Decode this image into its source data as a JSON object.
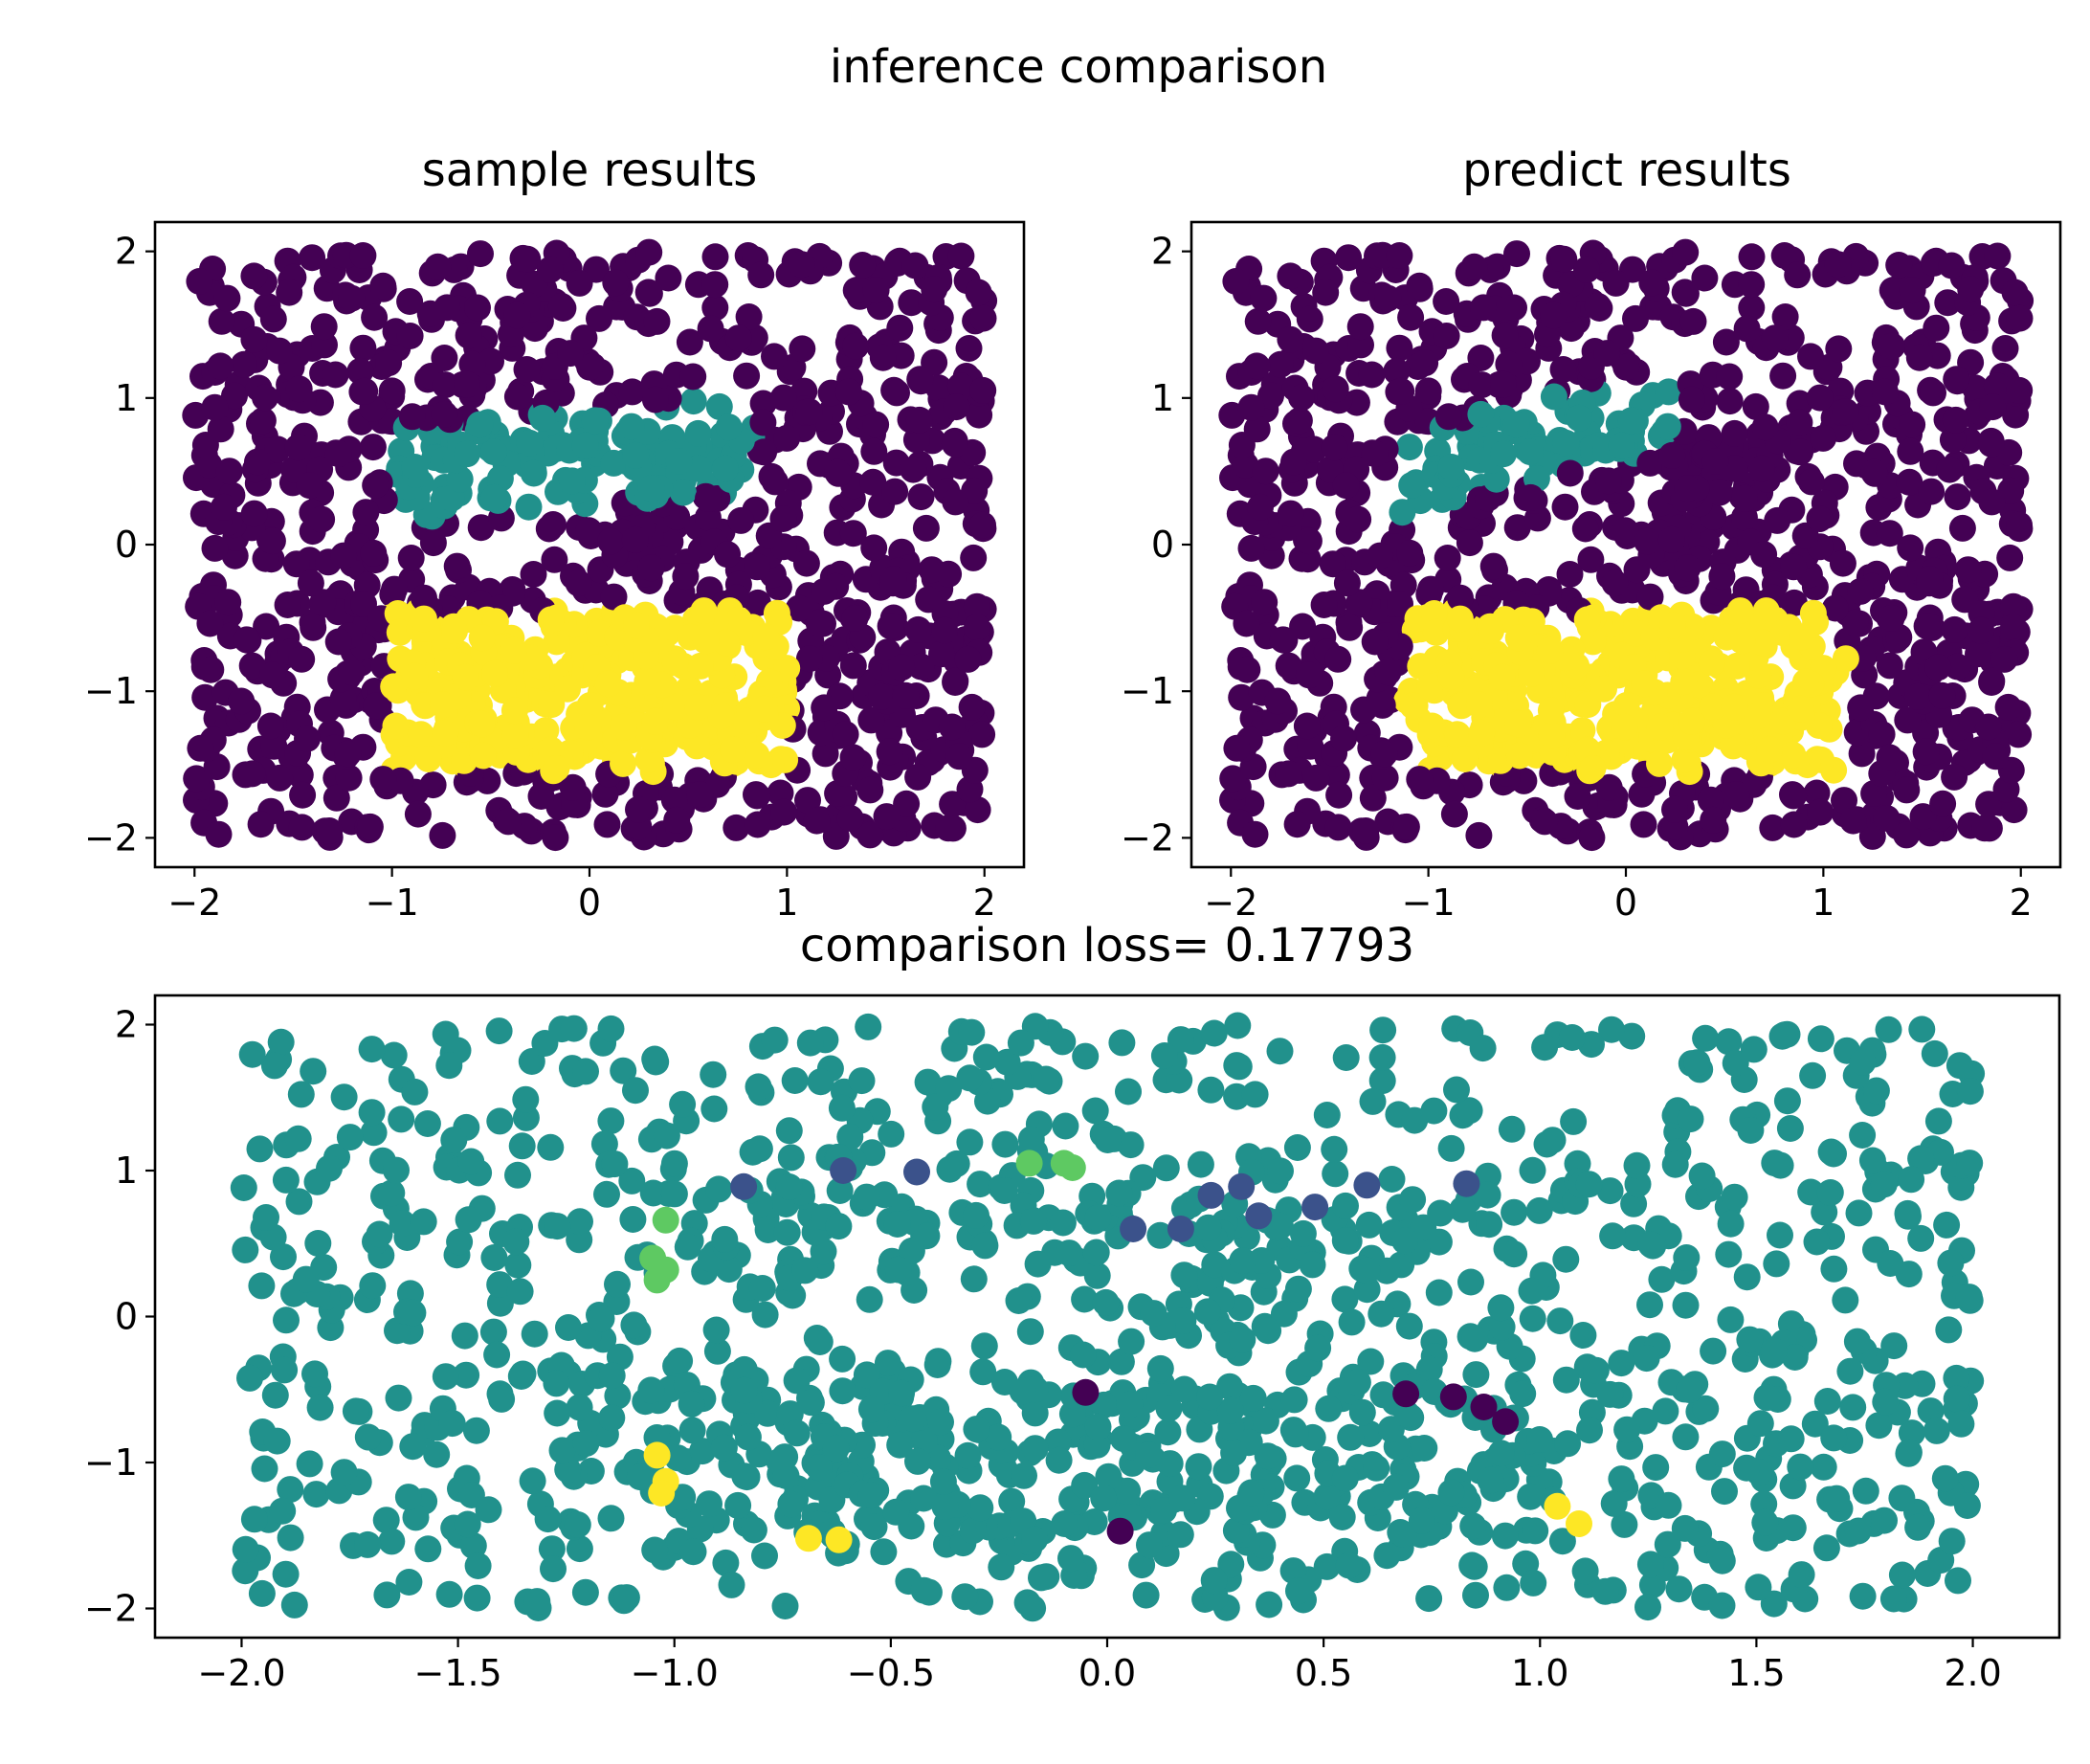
{
  "figure": {
    "suptitle": "inference comparison"
  },
  "colors": {
    "background": "#440154",
    "cluster_a": "#21918c",
    "cluster_b": "#fde725",
    "mismatch_dark": "#440154",
    "mismatch_blue": "#3b528b",
    "mismatch_green": "#5ec962",
    "mismatch_yellow": "#fde725",
    "agree": "#21918c"
  },
  "chart_data": [
    {
      "type": "scatter",
      "title": "sample results",
      "xlabel": "",
      "ylabel": "",
      "xlim": [
        -2.2,
        2.2
      ],
      "ylim": [
        -2.2,
        2.2
      ],
      "xticks": [
        -2,
        -1,
        0,
        1,
        2
      ],
      "yticks": [
        -2,
        -1,
        0,
        1,
        2
      ],
      "grid": false,
      "legend": "none",
      "series": [
        {
          "color": "#440154",
          "region": "uniform over [-2,2]x[-2,2], roughly 1000 points"
        },
        {
          "color": "#21918c",
          "region": "band from (-0.95,0.3) to (0.85,0.95)"
        },
        {
          "color": "#fde725",
          "region": "block x in [-1,1], y in [-1.5,-0.5]"
        }
      ]
    },
    {
      "type": "scatter",
      "title": "predict results",
      "xlabel": "",
      "ylabel": "",
      "xlim": [
        -2.2,
        2.2
      ],
      "ylim": [
        -2.2,
        2.2
      ],
      "xticks": [
        -2,
        -1,
        0,
        1,
        2
      ],
      "yticks": [
        -2,
        -1,
        0,
        1,
        2
      ],
      "grid": false,
      "legend": "none",
      "series": [
        {
          "color": "#440154",
          "region": "uniform over [-2,2]x[-2,2], roughly 1000 points"
        },
        {
          "color": "#21918c",
          "region": "band from (-1.1,0.3) to (0.2,1.0)"
        },
        {
          "color": "#fde725",
          "region": "block x in [-1.1,1.1], y in [-1.5,-0.5]"
        }
      ]
    },
    {
      "type": "scatter",
      "title": "comparison loss= 0.17793",
      "xlabel": "",
      "ylabel": "",
      "xlim": [
        -2.2,
        2.2
      ],
      "ylim": [
        -2.2,
        2.2
      ],
      "xticks": [
        "−2.0",
        "−1.5",
        "−1.0",
        "−0.5",
        "0.0",
        "0.5",
        "1.0",
        "1.5",
        "2.0"
      ],
      "xtick_values": [
        -2.0,
        -1.5,
        -1.0,
        -0.5,
        0.0,
        0.5,
        1.0,
        1.5,
        2.0
      ],
      "yticks": [
        -2,
        -1,
        0,
        1,
        2
      ],
      "grid": false,
      "legend": "none",
      "series": [
        {
          "color": "#21918c",
          "region": "uniform over [-2,2]x[-2,2], roughly 1000 points"
        },
        {
          "color": "#3b528b",
          "points": [
            [
              -0.84,
              0.89
            ],
            [
              -0.61,
              1.0
            ],
            [
              -0.44,
              0.99
            ],
            [
              0.06,
              0.6
            ],
            [
              0.17,
              0.6
            ],
            [
              0.24,
              0.83
            ],
            [
              0.31,
              0.89
            ],
            [
              0.35,
              0.69
            ],
            [
              0.48,
              0.75
            ],
            [
              0.6,
              0.9
            ],
            [
              0.83,
              0.91
            ]
          ]
        },
        {
          "color": "#5ec962",
          "points": [
            [
              -1.02,
              0.66
            ],
            [
              -1.05,
              0.4
            ],
            [
              -1.02,
              0.32
            ],
            [
              -1.04,
              0.25
            ],
            [
              -0.18,
              1.05
            ],
            [
              -0.1,
              1.05
            ],
            [
              -0.08,
              1.02
            ]
          ]
        },
        {
          "color": "#440154",
          "points": [
            [
              0.69,
              -0.53
            ],
            [
              0.8,
              -0.55
            ],
            [
              0.87,
              -0.62
            ],
            [
              0.92,
              -0.72
            ],
            [
              0.03,
              -1.47
            ],
            [
              -0.05,
              -0.52
            ]
          ]
        },
        {
          "color": "#fde725",
          "points": [
            [
              -1.04,
              -0.95
            ],
            [
              -1.02,
              -1.13
            ],
            [
              -1.03,
              -1.21
            ],
            [
              -0.69,
              -1.52
            ],
            [
              -0.62,
              -1.53
            ],
            [
              1.04,
              -1.3
            ],
            [
              1.09,
              -1.42
            ]
          ]
        }
      ]
    }
  ]
}
